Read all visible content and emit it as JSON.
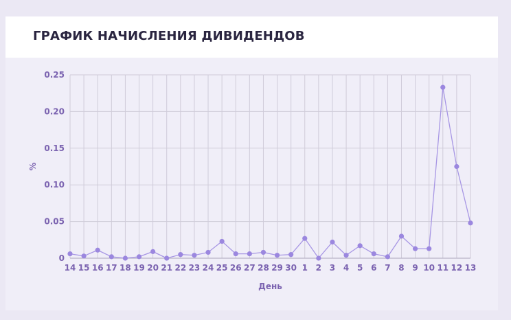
{
  "header": {
    "title": "ГРАФИК НАЧИСЛЕНИЯ ДИВИДЕНДОВ"
  },
  "colors": {
    "line": "#a796e4",
    "point": "#9b87df",
    "grid": "#cfcbd9",
    "tick_text": "#7b63b0",
    "title": "#2a2540"
  },
  "chart_data": {
    "type": "line",
    "title": "ГРАФИК НАЧИСЛЕНИЯ ДИВИДЕНДОВ",
    "xlabel": "День",
    "ylabel": "%",
    "ylim": [
      0,
      0.25
    ],
    "yticks": [
      "0",
      "0.05",
      "0.10",
      "0.15",
      "0.20",
      "0.25"
    ],
    "grid": true,
    "categories": [
      "14",
      "15",
      "16",
      "17",
      "18",
      "19",
      "20",
      "21",
      "22",
      "23",
      "24",
      "25",
      "26",
      "27",
      "28",
      "29",
      "30",
      "1",
      "2",
      "3",
      "4",
      "5",
      "6",
      "7",
      "8",
      "9",
      "10",
      "11",
      "12",
      "13"
    ],
    "series": [
      {
        "values": [
          0.006,
          0.003,
          0.011,
          0.002,
          0.0,
          0.002,
          0.009,
          0.0,
          0.005,
          0.004,
          0.008,
          0.023,
          0.006,
          0.006,
          0.008,
          0.004,
          0.005,
          0.027,
          0.0,
          0.022,
          0.004,
          0.017,
          0.006,
          0.002,
          0.03,
          0.013,
          0.013,
          0.233,
          0.125,
          0.048
        ]
      }
    ]
  }
}
